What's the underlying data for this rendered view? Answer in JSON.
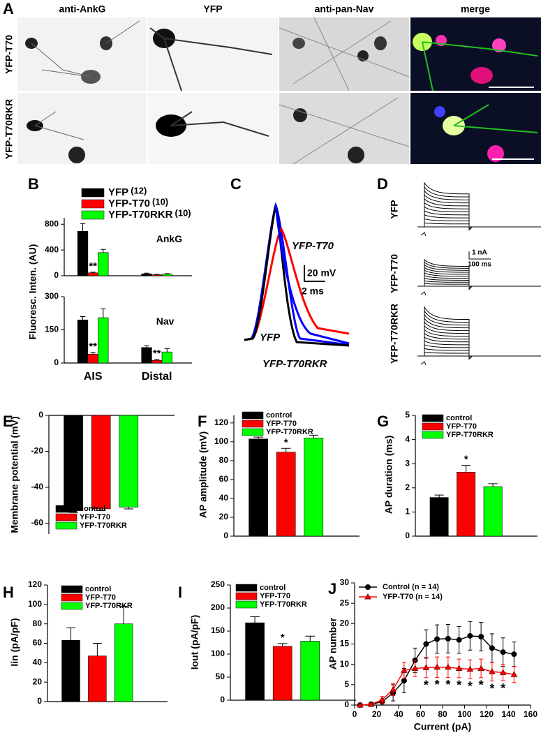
{
  "panel_a": {
    "panel": "A",
    "columns": [
      "anti-AnkG",
      "YFP",
      "anti-pan-Nav",
      "merge"
    ],
    "rows": [
      "YFP-T70",
      "YFP-T70RKR"
    ]
  },
  "panel_c": {
    "panel": "C",
    "trace_labels": [
      "YFP-T70",
      "YFP",
      "YFP-T70RKR"
    ],
    "scale_bar": [
      "20 mV",
      "2 ms"
    ]
  },
  "panel_d": {
    "panel": "D",
    "rows": [
      "YFP",
      "YFP-T70",
      "YFP-T70RKR"
    ],
    "scale_bar": [
      "1 nA",
      "100 ms"
    ]
  },
  "chart_data": [
    {
      "type": "bar",
      "panel": "B",
      "title": "AnkG",
      "ylabel": "Fluoresc. Inten. (AU)",
      "categories": [
        null,
        null
      ],
      "series": [
        {
          "name": "YFP",
          "n_label": "(12)",
          "color": "#000000",
          "values": [
            690,
            30
          ],
          "errors": [
            120,
            10
          ]
        },
        {
          "name": "YFP-T70",
          "n_label": "(10)",
          "color": "#ff0000",
          "values": [
            45,
            15
          ],
          "errors": [
            10,
            5
          ],
          "value_annotations": [
            "**",
            null
          ]
        },
        {
          "name": "YFP-T70RKR",
          "n_label": "(10)",
          "color": "#00ff00",
          "values": [
            360,
            25
          ],
          "errors": [
            50,
            8
          ]
        }
      ],
      "ylim": [
        0,
        900
      ],
      "yticks": [
        0,
        400,
        800
      ],
      "legend": "upper left"
    },
    {
      "type": "bar",
      "title": "Nav",
      "categories": [
        "AIS",
        "Distal"
      ],
      "series": [
        {
          "color": "#000000",
          "values": [
            195,
            70
          ],
          "errors": [
            15,
            8
          ]
        },
        {
          "color": "#ff0000",
          "values": [
            40,
            12
          ],
          "errors": [
            8,
            4
          ],
          "value_annotations": [
            "**",
            "**"
          ]
        },
        {
          "color": "#00ff00",
          "values": [
            205,
            50
          ],
          "errors": [
            40,
            15
          ]
        }
      ],
      "ylim": [
        0,
        300
      ],
      "yticks": [
        0,
        150,
        300
      ]
    },
    {
      "type": "bar",
      "panel": "E",
      "ylabel": "Membrane potential (mV)",
      "series": [
        {
          "name": "control",
          "color": "#000000",
          "values": [
            -53
          ],
          "errors": [
            1
          ]
        },
        {
          "name": "YFP-T70",
          "color": "#ff0000",
          "values": [
            -52
          ],
          "errors": [
            1
          ]
        },
        {
          "name": "YFP-T70RKR",
          "color": "#00ff00",
          "values": [
            -51
          ],
          "errors": [
            1
          ]
        }
      ],
      "ylim": [
        -66,
        0
      ],
      "yticks": [
        -60,
        -40,
        -20,
        0
      ],
      "legend": "lower left"
    },
    {
      "type": "bar",
      "panel": "F",
      "ylabel": "AP amplitude (mV)",
      "series": [
        {
          "name": "control",
          "color": "#000000",
          "values": [
            103
          ],
          "errors": [
            2
          ]
        },
        {
          "name": "YFP-T70",
          "color": "#ff0000",
          "values": [
            89
          ],
          "errors": [
            4
          ],
          "value_annotations": [
            "*"
          ]
        },
        {
          "name": "YFP-T70RKR",
          "color": "#00ff00",
          "values": [
            104
          ],
          "errors": [
            3
          ]
        }
      ],
      "ylim": [
        0,
        128
      ],
      "yticks": [
        0,
        20,
        40,
        60,
        80,
        100,
        120
      ],
      "legend": "upper left"
    },
    {
      "type": "bar",
      "panel": "G",
      "ylabel": "AP duration (ms)",
      "series": [
        {
          "name": "control",
          "color": "#000000",
          "values": [
            1.6
          ],
          "errors": [
            0.1
          ]
        },
        {
          "name": "YFP-T70",
          "color": "#ff0000",
          "values": [
            2.65
          ],
          "errors": [
            0.28
          ],
          "value_annotations": [
            "*"
          ]
        },
        {
          "name": "YFP-T70RKR",
          "color": "#00ff00",
          "values": [
            2.05
          ],
          "errors": [
            0.12
          ]
        }
      ],
      "ylim": [
        0,
        5
      ],
      "yticks": [
        0,
        1,
        2,
        3,
        4,
        5
      ],
      "legend": "upper left"
    },
    {
      "type": "bar",
      "panel": "H",
      "ylabel": "Iin (pA/pF)",
      "series": [
        {
          "name": "control",
          "color": "#000000",
          "values": [
            63
          ],
          "errors": [
            13
          ]
        },
        {
          "name": "YFP-T70",
          "color": "#ff0000",
          "values": [
            47
          ],
          "errors": [
            13
          ]
        },
        {
          "name": "YFP-T70RKR",
          "color": "#00ff00",
          "values": [
            80
          ],
          "errors": [
            18
          ]
        }
      ],
      "ylim": [
        0,
        120
      ],
      "yticks": [
        0,
        20,
        40,
        60,
        80,
        100,
        120
      ],
      "legend": "upper left"
    },
    {
      "type": "bar",
      "panel": "I",
      "ylabel": "Iout (pA/pF)",
      "series": [
        {
          "name": "control",
          "color": "#000000",
          "values": [
            168
          ],
          "errors": [
            13
          ]
        },
        {
          "name": "YFP-T70",
          "color": "#ff0000",
          "values": [
            117
          ],
          "errors": [
            6
          ],
          "value_annotations": [
            "*"
          ]
        },
        {
          "name": "YFP-T70RKR",
          "color": "#00ff00",
          "values": [
            128
          ],
          "errors": [
            11
          ]
        }
      ],
      "ylim": [
        0,
        250
      ],
      "yticks": [
        0,
        50,
        100,
        150,
        200,
        250
      ],
      "legend": "upper left"
    },
    {
      "type": "line",
      "panel": "J",
      "xlabel": "Current (pA)",
      "ylabel": "AP number",
      "x": [
        5,
        15,
        25,
        35,
        45,
        55,
        65,
        75,
        85,
        95,
        105,
        115,
        125,
        135,
        145
      ],
      "series": [
        {
          "name": "Control  (n = 14)",
          "color": "#000000",
          "marker": "circle",
          "values": [
            0,
            0.2,
            0.8,
            3,
            6,
            11,
            15,
            16.2,
            16.3,
            16,
            17,
            16.8,
            14,
            13,
            12.5
          ],
          "errors": [
            0,
            0.1,
            0.5,
            2,
            3,
            3,
            3.5,
            3.5,
            3.5,
            3.3,
            3.5,
            3.5,
            3.5,
            3.5,
            3
          ]
        },
        {
          "name": "YFP-T70 (n = 14)",
          "color": "#ff0000",
          "marker": "triangle",
          "values": [
            0,
            0.2,
            1.3,
            3.8,
            8.5,
            9,
            9.2,
            9.3,
            9.3,
            9,
            8.8,
            9,
            8.2,
            8,
            7.5
          ],
          "errors": [
            0,
            0.2,
            0.8,
            1.5,
            2,
            2,
            2.5,
            2.5,
            2.5,
            2.3,
            2.3,
            2.3,
            2.3,
            2,
            2
          ],
          "value_annotations": [
            null,
            null,
            null,
            null,
            null,
            null,
            "*",
            "*",
            "*",
            "*",
            "*",
            "*",
            "*",
            "*",
            null
          ]
        }
      ],
      "xlim": [
        0,
        160
      ],
      "xticks": [
        0,
        20,
        40,
        60,
        80,
        100,
        120,
        140,
        160
      ],
      "ylim": [
        0,
        30
      ],
      "yticks": [
        0,
        5,
        10,
        15,
        20,
        25,
        30
      ],
      "legend": "upper left"
    }
  ]
}
